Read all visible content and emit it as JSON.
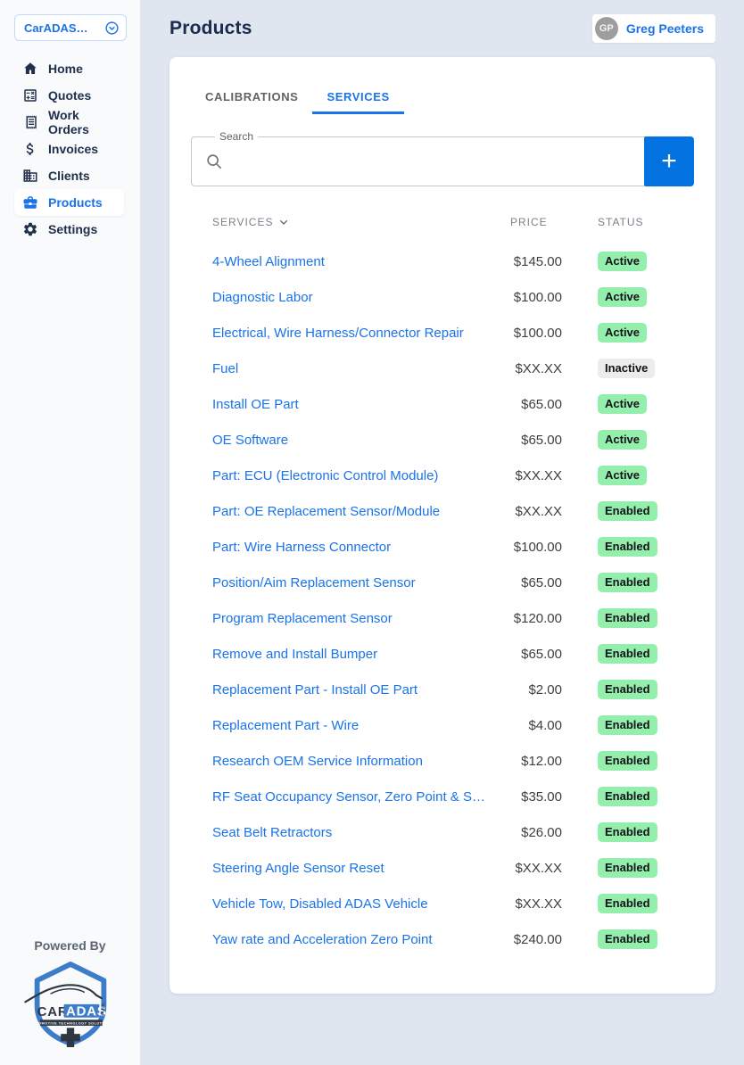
{
  "colors": {
    "accent_blue": "#1a73e8",
    "button_blue": "#0473e2",
    "badge_green": "#94efac",
    "badge_gray": "#ececec",
    "page_bg": "#dfe6ef",
    "sidebar_bg": "#f8fafc",
    "navy_text": "#20304c"
  },
  "sidebar": {
    "org_selector": {
      "label": "CarADAS…",
      "icon": "chevron-down-circle-icon"
    },
    "items": [
      {
        "label": "Home",
        "icon": "home-icon",
        "active": false
      },
      {
        "label": "Quotes",
        "icon": "quotes-icon",
        "active": false
      },
      {
        "label": "Work Orders",
        "icon": "work-orders-icon",
        "active": false
      },
      {
        "label": "Invoices",
        "icon": "invoices-icon",
        "active": false
      },
      {
        "label": "Clients",
        "icon": "clients-icon",
        "active": false
      },
      {
        "label": "Products",
        "icon": "products-icon",
        "active": true
      },
      {
        "label": "Settings",
        "icon": "settings-icon",
        "active": false
      }
    ],
    "powered_by": "Powered By",
    "logo": {
      "brand_car": "CAR",
      "brand_adas": "ADAS",
      "brand_plus": "PLUS",
      "tagline": "AUTOMOTIVE TECHNOLOGY SOLUTIONS"
    }
  },
  "header": {
    "title": "Products",
    "user": {
      "initials": "GP",
      "name": "Greg Peeters"
    }
  },
  "tabs": [
    {
      "label": "CALIBRATIONS",
      "active": false
    },
    {
      "label": "SERVICES",
      "active": true
    }
  ],
  "search": {
    "label": "Search",
    "value": "",
    "icon": "search-icon"
  },
  "add_button": {
    "label": "+"
  },
  "table": {
    "columns": [
      "SERVICES",
      "PRICE",
      "STATUS"
    ],
    "sort_icon": "chevron-down-icon",
    "rows": [
      {
        "name": "4-Wheel Alignment",
        "price": "$145.00",
        "status": "Active"
      },
      {
        "name": "Diagnostic Labor",
        "price": "$100.00",
        "status": "Active"
      },
      {
        "name": "Electrical, Wire Harness/Connector Repair",
        "price": "$100.00",
        "status": "Active"
      },
      {
        "name": "Fuel",
        "price": "$XX.XX",
        "status": "Inactive"
      },
      {
        "name": "Install OE Part",
        "price": "$65.00",
        "status": "Active"
      },
      {
        "name": "OE Software",
        "price": "$65.00",
        "status": "Active"
      },
      {
        "name": "Part: ECU (Electronic Control Module)",
        "price": "$XX.XX",
        "status": "Active"
      },
      {
        "name": "Part: OE Replacement Sensor/Module",
        "price": "$XX.XX",
        "status": "Enabled"
      },
      {
        "name": "Part: Wire Harness Connector",
        "price": "$100.00",
        "status": "Enabled"
      },
      {
        "name": "Position/Aim Replacement Sensor",
        "price": "$65.00",
        "status": "Enabled"
      },
      {
        "name": "Program Replacement Sensor",
        "price": "$120.00",
        "status": "Enabled"
      },
      {
        "name": "Remove and Install Bumper",
        "price": "$65.00",
        "status": "Enabled"
      },
      {
        "name": "Replacement Part - Install OE Part",
        "price": "$2.00",
        "status": "Enabled"
      },
      {
        "name": "Replacement Part - Wire",
        "price": "$4.00",
        "status": "Enabled"
      },
      {
        "name": "Research OEM Service Information",
        "price": "$12.00",
        "status": "Enabled"
      },
      {
        "name": "RF Seat Occupancy Sensor, Zero Point & S…",
        "price": "$35.00",
        "status": "Enabled"
      },
      {
        "name": "Seat Belt Retractors",
        "price": "$26.00",
        "status": "Enabled"
      },
      {
        "name": "Steering Angle Sensor Reset",
        "price": "$XX.XX",
        "status": "Enabled"
      },
      {
        "name": "Vehicle Tow, Disabled ADAS Vehicle",
        "price": "$XX.XX",
        "status": "Enabled"
      },
      {
        "name": "Yaw rate and Acceleration Zero Point",
        "price": "$240.00",
        "status": "Enabled"
      }
    ]
  }
}
